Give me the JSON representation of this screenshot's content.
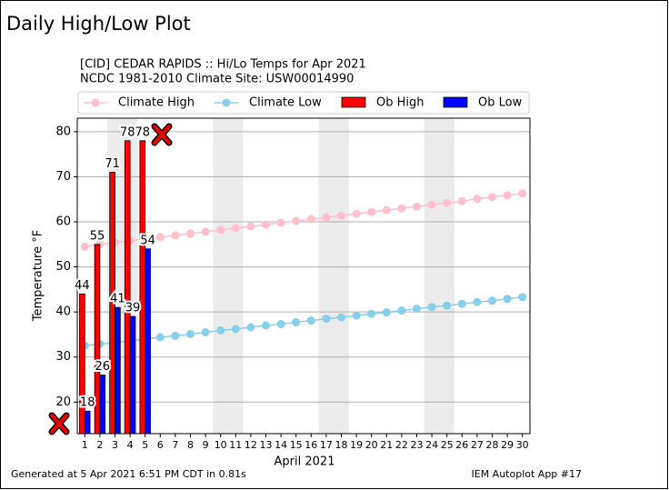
{
  "header": {
    "title": "Daily High/Low Plot"
  },
  "chart_data": {
    "type": "bar",
    "title": "[CID] CEDAR RAPIDS :: Hi/Lo Temps for Apr 2021",
    "subtitle": "NCDC 1981-2010 Climate Site: USW00014990",
    "x_label": "April 2021",
    "y_label": "Temperature °F",
    "x": [
      1,
      2,
      3,
      4,
      5,
      6,
      7,
      8,
      9,
      10,
      11,
      12,
      13,
      14,
      15,
      16,
      17,
      18,
      19,
      20,
      21,
      22,
      23,
      24,
      25,
      26,
      27,
      28,
      29,
      30
    ],
    "xlim": [
      0.5,
      30.5
    ],
    "xticks": [
      1,
      2,
      3,
      4,
      5,
      6,
      7,
      8,
      9,
      10,
      11,
      12,
      13,
      14,
      15,
      16,
      17,
      18,
      19,
      20,
      21,
      22,
      23,
      24,
      25,
      26,
      27,
      28,
      29,
      30
    ],
    "ylim": [
      13,
      83
    ],
    "yticks": [
      20,
      30,
      40,
      50,
      60,
      70,
      80
    ],
    "grid": true,
    "series": [
      {
        "name": "Climate High",
        "kind": "line",
        "color": "#ffc0cb",
        "values": [
          54.5,
          55.0,
          55.4,
          55.8,
          56.2,
          56.6,
          57.0,
          57.4,
          57.8,
          58.2,
          58.6,
          59.0,
          59.4,
          59.8,
          60.2,
          60.6,
          61.0,
          61.4,
          61.8,
          62.2,
          62.6,
          63.0,
          63.4,
          63.8,
          64.2,
          64.6,
          65.1,
          65.5,
          65.9,
          66.3
        ]
      },
      {
        "name": "Climate Low",
        "kind": "line",
        "color": "#87ceeb",
        "values": [
          32.5,
          32.9,
          33.2,
          33.6,
          34.0,
          34.4,
          34.7,
          35.1,
          35.5,
          35.9,
          36.2,
          36.6,
          37.0,
          37.3,
          37.7,
          38.1,
          38.5,
          38.8,
          39.2,
          39.6,
          39.9,
          40.3,
          40.7,
          41.1,
          41.4,
          41.8,
          42.2,
          42.5,
          42.9,
          43.3
        ]
      },
      {
        "name": "Ob High",
        "kind": "bar",
        "color": "#ff0000",
        "values": [
          44,
          55,
          71,
          78,
          78,
          null,
          null,
          null,
          null,
          null,
          null,
          null,
          null,
          null,
          null,
          null,
          null,
          null,
          null,
          null,
          null,
          null,
          null,
          null,
          null,
          null,
          null,
          null,
          null,
          null
        ]
      },
      {
        "name": "Ob Low",
        "kind": "bar",
        "color": "#0000ff",
        "values": [
          18,
          26,
          41,
          39,
          54,
          null,
          null,
          null,
          null,
          null,
          null,
          null,
          null,
          null,
          null,
          null,
          null,
          null,
          null,
          null,
          null,
          null,
          null,
          null,
          null,
          null,
          null,
          null,
          null,
          null
        ]
      }
    ]
  },
  "footer": {
    "left": "Generated at 5 Apr 2021 6:51 PM CDT in 0.81s",
    "right": "IEM Autoplot App #17"
  }
}
